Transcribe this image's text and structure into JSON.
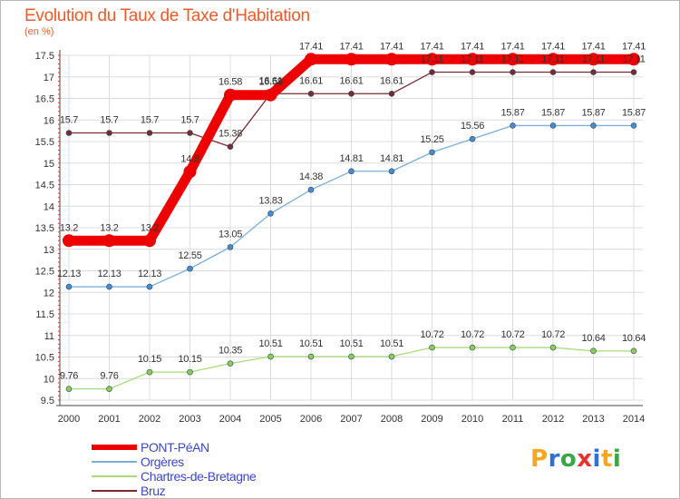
{
  "header": {
    "title": "Evolution du Taux de Taxe d'Habitation",
    "unit": "(en %)"
  },
  "logo": {
    "parts": [
      "P",
      "r",
      "o",
      "x",
      "i",
      "t",
      "i"
    ],
    "colors": [
      "#f5a623",
      "#2f6fd6",
      "#3aa646",
      "#e8322b",
      "#2f6fd6",
      "#f5a623",
      "#3aa646"
    ]
  },
  "chart_data": {
    "type": "line",
    "x": [
      "2000",
      "2001",
      "2002",
      "2003",
      "2004",
      "2005",
      "2006",
      "2007",
      "2008",
      "2009",
      "2010",
      "2011",
      "2012",
      "2013",
      "2014"
    ],
    "ylim": [
      9.5,
      17.5
    ],
    "yticks": [
      "9.5",
      "10",
      "10.5",
      "11",
      "11.5",
      "12",
      "12.5",
      "13",
      "13.5",
      "14",
      "14.5",
      "15",
      "15.5",
      "16",
      "16.5",
      "17",
      "17.5"
    ],
    "grid": true,
    "legend": "bottom-left",
    "series": [
      {
        "name": "PONT-PéAN",
        "color": "#ee0000",
        "marker": "#ee0000",
        "values": [
          13.2,
          13.2,
          13.2,
          14.8,
          16.58,
          16.58,
          17.41,
          17.41,
          17.41,
          17.41,
          17.41,
          17.41,
          17.41,
          17.41,
          17.41
        ],
        "labels": [
          "13.2",
          "13.2",
          "13.2",
          "14.8",
          "16.58",
          "16.58",
          "17.41",
          "17.41",
          "17.41",
          "17.41",
          "17.41",
          "17.41",
          "17.41",
          "17.41",
          "17.41"
        ]
      },
      {
        "name": "Orgères",
        "color": "#7ab0dc",
        "marker": "#4a8ac8",
        "values": [
          12.13,
          12.13,
          12.13,
          12.55,
          13.05,
          13.83,
          14.38,
          14.81,
          14.81,
          15.25,
          15.56,
          15.87,
          15.87,
          15.87,
          15.87
        ],
        "labels": [
          "12.13",
          "12.13",
          "12.13",
          "12.55",
          "13.05",
          "13.83",
          "14.38",
          "14.81",
          "14.81",
          "15.25",
          "15.56",
          "15.87",
          "15.87",
          "15.87",
          "15.87"
        ]
      },
      {
        "name": "Chartres-de-Bretagne",
        "color": "#a8dc7a",
        "marker": "#8ccc50",
        "values": [
          9.76,
          9.76,
          10.15,
          10.15,
          10.35,
          10.51,
          10.51,
          10.51,
          10.51,
          10.72,
          10.72,
          10.72,
          10.72,
          10.64,
          10.64
        ],
        "labels": [
          "9.76",
          "9.76",
          "10.15",
          "10.15",
          "10.35",
          "10.51",
          "10.51",
          "10.51",
          "10.51",
          "10.72",
          "10.72",
          "10.72",
          "10.72",
          "10.64",
          "10.64"
        ]
      },
      {
        "name": "Bruz",
        "color": "#7a2a30",
        "marker": "#7a2a30",
        "values": [
          15.7,
          15.7,
          15.7,
          15.7,
          15.38,
          16.61,
          16.61,
          16.61,
          16.61,
          17.11,
          17.11,
          17.11,
          17.11,
          17.11,
          17.11
        ],
        "labels": [
          "15.7",
          "15.7",
          "15.7",
          "15.7",
          "15.38",
          "16.61",
          "16.61",
          "16.61",
          "16.61",
          "17.11",
          "17.11",
          "17.11",
          "17.11",
          "17.11",
          "17.11"
        ]
      }
    ]
  }
}
